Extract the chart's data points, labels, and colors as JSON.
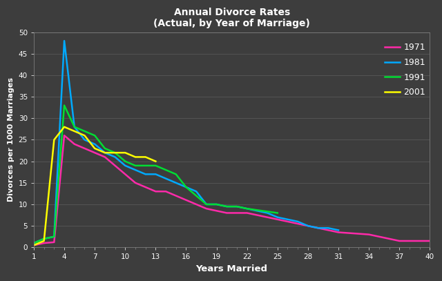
{
  "title": "Annual Divorce Rates\n(Actual, by Year of Marriage)",
  "xlabel": "Years Married",
  "ylabel": "Divorces per 1000 Marriages",
  "background_color": "#3d3d3d",
  "text_color": "#ffffff",
  "grid_color": "#585858",
  "x_ticks": [
    1,
    4,
    7,
    10,
    13,
    16,
    19,
    22,
    25,
    28,
    31,
    34,
    37,
    40
  ],
  "y_ticks": [
    0,
    5,
    10,
    15,
    20,
    25,
    30,
    35,
    40,
    45,
    50
  ],
  "ylim": [
    0,
    50
  ],
  "xlim": [
    1,
    40
  ],
  "series": {
    "1971": {
      "color": "#ff2aaa",
      "x": [
        1,
        2,
        3,
        4,
        5,
        6,
        7,
        8,
        9,
        10,
        11,
        12,
        13,
        14,
        15,
        16,
        17,
        18,
        19,
        20,
        21,
        22,
        23,
        24,
        25,
        26,
        27,
        28,
        29,
        30,
        31,
        34,
        37,
        40
      ],
      "y": [
        0.5,
        1.0,
        1.2,
        26,
        24,
        23,
        22,
        21,
        19,
        17,
        15,
        14,
        13,
        13,
        12,
        11,
        10,
        9,
        8.5,
        8,
        8,
        8,
        7.5,
        7,
        6.5,
        6,
        5.5,
        5,
        4.5,
        4,
        3.5,
        3,
        1.5,
        1.5
      ]
    },
    "1981": {
      "color": "#00aaff",
      "x": [
        1,
        2,
        3,
        4,
        5,
        6,
        7,
        8,
        9,
        10,
        11,
        12,
        13,
        14,
        15,
        16,
        17,
        18,
        19,
        20,
        21,
        22,
        23,
        24,
        25,
        26,
        27,
        28,
        29,
        30,
        31
      ],
      "y": [
        1.0,
        2.0,
        2.5,
        48,
        28,
        25,
        24,
        22,
        21,
        19,
        18,
        17,
        17,
        16,
        15,
        14,
        13,
        10,
        10,
        9.5,
        9.5,
        9,
        8.5,
        8,
        7,
        6.5,
        6,
        5,
        4.5,
        4.5,
        4
      ]
    },
    "1991": {
      "color": "#00dd33",
      "x": [
        1,
        2,
        3,
        4,
        5,
        6,
        7,
        8,
        9,
        10,
        11,
        12,
        13,
        14,
        15,
        16,
        17,
        18,
        19,
        20,
        21,
        22,
        25
      ],
      "y": [
        1.0,
        2.0,
        2.5,
        33,
        28,
        27,
        26,
        23,
        22,
        20,
        19,
        19,
        19,
        18,
        17,
        14,
        12,
        10,
        10,
        9.5,
        9.5,
        9,
        8
      ]
    },
    "2001": {
      "color": "#ffff00",
      "x": [
        1,
        2,
        3,
        4,
        5,
        6,
        7,
        8,
        9,
        10,
        11,
        12,
        13
      ],
      "y": [
        0.5,
        1.5,
        25,
        28,
        27,
        26,
        23,
        22,
        22,
        22,
        21,
        21,
        20
      ]
    }
  }
}
